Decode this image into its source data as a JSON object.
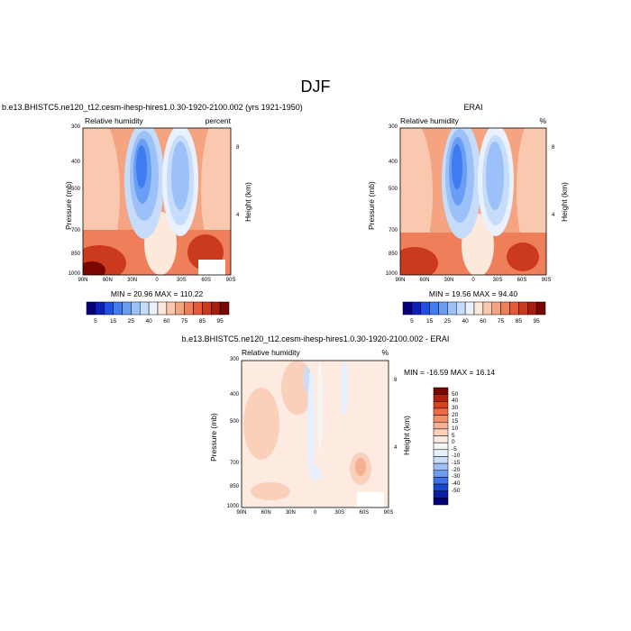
{
  "figure": {
    "title": "DJF"
  },
  "panels": [
    {
      "id": "model",
      "header": "b.e13.BHISTC5.ne120_t12.cesm-ihesp-hires1.0.30-1920-2100.002 (yrs 1921-1950)",
      "left_label": "Relative humidity",
      "right_label": "percent",
      "stats": "MIN =  20.96   MAX = 110.22"
    },
    {
      "id": "obs",
      "header": "ERAI",
      "left_label": "Relative humidity",
      "right_label": "%",
      "stats": "MIN =  19.56   MAX =  94.40"
    },
    {
      "id": "diff",
      "header": "b.e13.BHISTC5.ne120_t12.cesm-ihesp-hires1.0.30-1920-2100.002 - ERAI",
      "left_label": "Relative humidity",
      "right_label": "%",
      "stats": "MIN = -16.59   MAX =  16.14"
    }
  ],
  "axes": {
    "ylabel": "Pressure (mb)",
    "y2label": "Height (km)",
    "x_ticks": [
      "90N",
      "60N",
      "30N",
      "0",
      "30S",
      "60S",
      "90S"
    ],
    "y_ticks": [
      "300",
      "400",
      "500",
      "700",
      "850",
      "1000"
    ],
    "y2_ticks": [
      "8",
      "4"
    ]
  },
  "colorbar_abs": {
    "labels": [
      "5",
      "15",
      "25",
      "40",
      "60",
      "75",
      "85",
      "95"
    ],
    "colors": [
      "#05007a",
      "#0c1fb8",
      "#1f4fe0",
      "#3f7cf0",
      "#6a9ef4",
      "#9cc0f8",
      "#c6dcfb",
      "#e8f1fd",
      "#fde8dc",
      "#f9c8ae",
      "#f5a482",
      "#ef7e5a",
      "#e45a38",
      "#cc3a1e",
      "#a81e0e",
      "#7a0600"
    ]
  },
  "colorbar_diff": {
    "labels": [
      "50",
      "40",
      "30",
      "20",
      "15",
      "10",
      "5",
      "0",
      "-5",
      "-10",
      "-15",
      "-20",
      "-30",
      "-40",
      "-50"
    ],
    "colors": [
      "#7a0600",
      "#b0200e",
      "#d8401e",
      "#ef6a44",
      "#f48e6a",
      "#f7b092",
      "#fbd0bb",
      "#fdeae0",
      "#f5f5f5",
      "#e6efff",
      "#c8dcfb",
      "#9fc0f6",
      "#6e9bf1",
      "#3c72e6",
      "#1a46cc",
      "#0b1fa5",
      "#05007a"
    ]
  },
  "chart_data": [
    {
      "type": "heatmap",
      "title": "b.e13.BHISTC5.ne120_t12.cesm-ihesp-hires1.0.30-1920-2100.002 (yrs 1921-1950)",
      "variable": "Relative humidity",
      "units": "percent",
      "xlabel": "",
      "ylabel": "Pressure (mb)",
      "y2label": "Height (km)",
      "x_categories": [
        "90N",
        "60N",
        "30N",
        "0",
        "30S",
        "60S",
        "90S"
      ],
      "y_levels_mb": [
        300,
        400,
        500,
        700,
        850,
        1000
      ],
      "min": 20.96,
      "max": 110.22
    },
    {
      "type": "heatmap",
      "title": "ERAI",
      "variable": "Relative humidity",
      "units": "%",
      "ylabel": "Pressure (mb)",
      "y2label": "Height (km)",
      "x_categories": [
        "90N",
        "60N",
        "30N",
        "0",
        "30S",
        "60S",
        "90S"
      ],
      "y_levels_mb": [
        300,
        400,
        500,
        700,
        850,
        1000
      ],
      "min": 19.56,
      "max": 94.4
    },
    {
      "type": "heatmap",
      "title": "b.e13.BHISTC5.ne120_t12.cesm-ihesp-hires1.0.30-1920-2100.002 - ERAI",
      "variable": "Relative humidity",
      "units": "%",
      "ylabel": "Pressure (mb)",
      "y2label": "Height (km)",
      "x_categories": [
        "90N",
        "60N",
        "30N",
        "0",
        "30S",
        "60S",
        "90S"
      ],
      "y_levels_mb": [
        300,
        400,
        500,
        700,
        850,
        1000
      ],
      "min": -16.59,
      "max": 16.14
    }
  ]
}
